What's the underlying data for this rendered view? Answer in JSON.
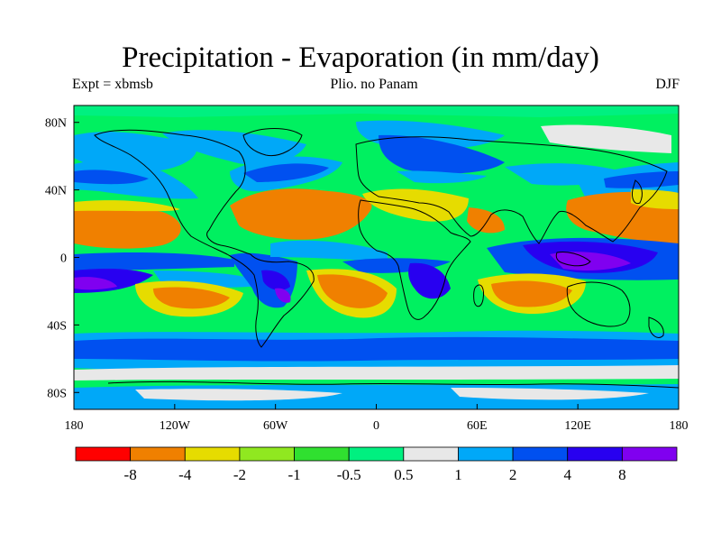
{
  "title": "Precipitation - Evaporation (in mm/day)",
  "subtitle_left": "Expt = xbmsb",
  "subtitle_center": "Plio. no Panam",
  "subtitle_right": "DJF",
  "map": {
    "lon_range": [
      -180,
      180
    ],
    "lat_range": [
      -90,
      90
    ],
    "background_color": "#00f060",
    "x_ticks": [
      {
        "value": -180,
        "label": "180"
      },
      {
        "value": -120,
        "label": "120W"
      },
      {
        "value": -60,
        "label": "60W"
      },
      {
        "value": 0,
        "label": "0"
      },
      {
        "value": 60,
        "label": "60E"
      },
      {
        "value": 120,
        "label": "120E"
      },
      {
        "value": 180,
        "label": "180"
      }
    ],
    "y_ticks": [
      {
        "value": 80,
        "label": "80N"
      },
      {
        "value": 40,
        "label": "40N"
      },
      {
        "value": 0,
        "label": "0"
      },
      {
        "value": -40,
        "label": "40S"
      },
      {
        "value": -80,
        "label": "80S"
      }
    ]
  },
  "colorbar": {
    "colors": [
      "#ff0000",
      "#f08000",
      "#e6dc00",
      "#90e820",
      "#30e030",
      "#00f080",
      "#e8e8e8",
      "#00a8f8",
      "#0050f0",
      "#2800f0",
      "#8000f0"
    ],
    "labels": [
      "-8",
      "-4",
      "-2",
      "-1",
      "-0.5",
      "0.5",
      "1",
      "2",
      "4",
      "8"
    ]
  }
}
